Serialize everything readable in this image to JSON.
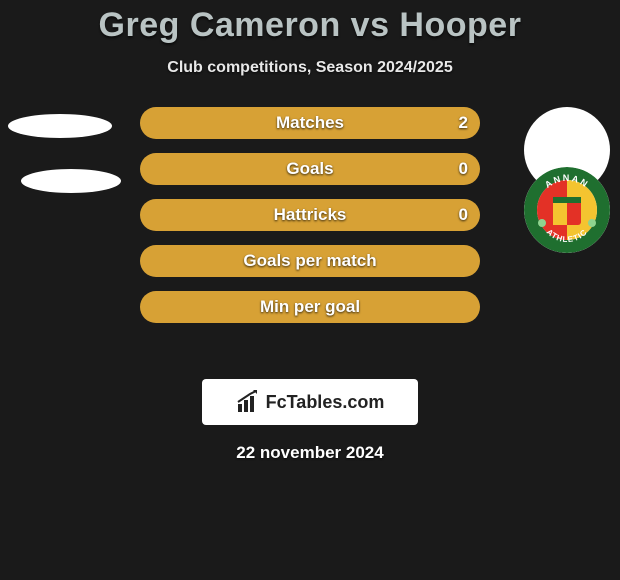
{
  "title": "Greg Cameron vs Hooper",
  "subtitle": "Club competitions, Season 2024/2025",
  "date": "22 november 2024",
  "colors": {
    "background": "#1a1a1a",
    "title": "#b9c3c3",
    "bar_fill": "#d7a135",
    "bar_alt": "#d7a135",
    "ellipse": "#ffffff",
    "logo_box": "#ffffff"
  },
  "bars": [
    {
      "label": "Matches",
      "value": "2",
      "width_pct": 100
    },
    {
      "label": "Goals",
      "value": "0",
      "width_pct": 100
    },
    {
      "label": "Hattricks",
      "value": "0",
      "width_pct": 100
    },
    {
      "label": "Goals per match",
      "value": "",
      "width_pct": 100
    },
    {
      "label": "Min per goal",
      "value": "",
      "width_pct": 100
    }
  ],
  "badge": {
    "ring_text_top": "ANNAN",
    "ring_text_bottom": "ATHLETIC",
    "ring_color": "#1f6f2f",
    "inner_top": "#1f6f2f",
    "inner_left": "#e33126",
    "inner_right": "#f4c430"
  },
  "logo": {
    "text": "FcTables.com"
  }
}
